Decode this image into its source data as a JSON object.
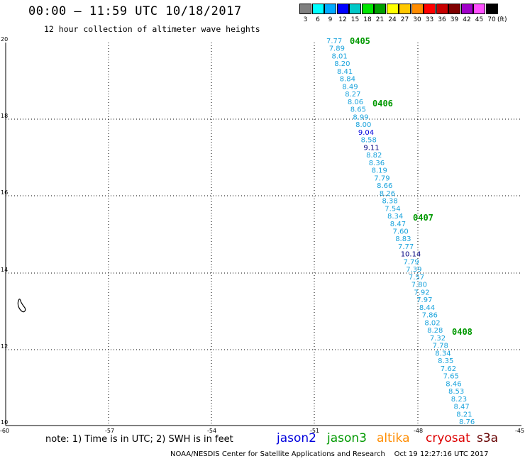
{
  "header": {
    "title": "00:00 – 11:59 UTC 10/18/2017",
    "subtitle": "12 hour collection of altimeter wave heights"
  },
  "legend": {
    "labels": [
      "3",
      "6",
      "9",
      "12",
      "15",
      "18",
      "21",
      "24",
      "27",
      "30",
      "33",
      "36",
      "39",
      "42",
      "45",
      "70"
    ],
    "unit": "(ft)",
    "colors": [
      "#808080",
      "#00ffff",
      "#00aaff",
      "#0000ff",
      "#00c8c8",
      "#00e600",
      "#00a000",
      "#ffff00",
      "#ffc800",
      "#ff8c00",
      "#ff0000",
      "#c80000",
      "#800000",
      "#a000c8",
      "#ff50ff",
      "#000000"
    ]
  },
  "axes": {
    "lat_labels": [
      "20",
      "18",
      "16",
      "14",
      "12",
      "10"
    ],
    "lon_labels": [
      "-60",
      "-57",
      "-54",
      "-51",
      "-48",
      "-45"
    ]
  },
  "passes": [
    "0405",
    "0406",
    "0407",
    "0408"
  ],
  "wave_heights": [
    {
      "value": "7.77",
      "color": "#1aa3dc"
    },
    {
      "value": "7.89",
      "color": "#1aa3dc"
    },
    {
      "value": "8.01",
      "color": "#1aa3dc"
    },
    {
      "value": "8.20",
      "color": "#1aa3dc"
    },
    {
      "value": "8.41",
      "color": "#1aa3dc"
    },
    {
      "value": "8.84",
      "color": "#1aa3dc"
    },
    {
      "value": "8.49",
      "color": "#1aa3dc"
    },
    {
      "value": "8.27",
      "color": "#1aa3dc"
    },
    {
      "value": "8.06",
      "color": "#1aa3dc"
    },
    {
      "value": "8.65",
      "color": "#1aa3dc"
    },
    {
      "value": "8.99",
      "color": "#1aa3dc"
    },
    {
      "value": "8.00",
      "color": "#1aa3dc"
    },
    {
      "value": "9.04",
      "color": "#0000dd"
    },
    {
      "value": "8.58",
      "color": "#1aa3dc"
    },
    {
      "value": "9.11",
      "color": "#000080"
    },
    {
      "value": "8.82",
      "color": "#1aa3dc"
    },
    {
      "value": "8.36",
      "color": "#1aa3dc"
    },
    {
      "value": "8.19",
      "color": "#1aa3dc"
    },
    {
      "value": "7.79",
      "color": "#1aa3dc"
    },
    {
      "value": "8.66",
      "color": "#1aa3dc"
    },
    {
      "value": "8.26",
      "color": "#1aa3dc"
    },
    {
      "value": "8.38",
      "color": "#1aa3dc"
    },
    {
      "value": "7.54",
      "color": "#1aa3dc"
    },
    {
      "value": "8.34",
      "color": "#1aa3dc"
    },
    {
      "value": "8.47",
      "color": "#1aa3dc"
    },
    {
      "value": "7.60",
      "color": "#1aa3dc"
    },
    {
      "value": "8.83",
      "color": "#1aa3dc"
    },
    {
      "value": "7.77",
      "color": "#1aa3dc"
    },
    {
      "value": "10.14",
      "color": "#000080"
    },
    {
      "value": "7.79",
      "color": "#1aa3dc"
    },
    {
      "value": "7.39",
      "color": "#1aa3dc"
    },
    {
      "value": "7.57",
      "color": "#1aa3dc"
    },
    {
      "value": "7.80",
      "color": "#1aa3dc"
    },
    {
      "value": "7.92",
      "color": "#1aa3dc"
    },
    {
      "value": "7.97",
      "color": "#1aa3dc"
    },
    {
      "value": "8.44",
      "color": "#1aa3dc"
    },
    {
      "value": "7.86",
      "color": "#1aa3dc"
    },
    {
      "value": "8.02",
      "color": "#1aa3dc"
    },
    {
      "value": "8.28",
      "color": "#1aa3dc"
    },
    {
      "value": "7.32",
      "color": "#1aa3dc"
    },
    {
      "value": "7.78",
      "color": "#1aa3dc"
    },
    {
      "value": "8.34",
      "color": "#1aa3dc"
    },
    {
      "value": "8.35",
      "color": "#1aa3dc"
    },
    {
      "value": "7.62",
      "color": "#1aa3dc"
    },
    {
      "value": "7.65",
      "color": "#1aa3dc"
    },
    {
      "value": "8.46",
      "color": "#1aa3dc"
    },
    {
      "value": "8.53",
      "color": "#1aa3dc"
    },
    {
      "value": "8.23",
      "color": "#1aa3dc"
    },
    {
      "value": "8.47",
      "color": "#1aa3dc"
    },
    {
      "value": "8.21",
      "color": "#1aa3dc"
    },
    {
      "value": "8.76",
      "color": "#1aa3dc"
    }
  ],
  "footer": {
    "note": "note: 1) Time is in UTC; 2) SWH is in feet",
    "satellites": [
      {
        "name": "jason2",
        "color": "#0000dd"
      },
      {
        "name": "jason3",
        "color": "#009900"
      },
      {
        "name": "altika",
        "color": "#ff8c00"
      },
      {
        "name": "cryosat",
        "color": "#dd0000"
      },
      {
        "name": "s3a",
        "color": "#660000"
      }
    ],
    "credit": "NOAA/NESDIS Center for Satellite Applications and Research    Oct 19 12:27:16 UTC 2017"
  }
}
